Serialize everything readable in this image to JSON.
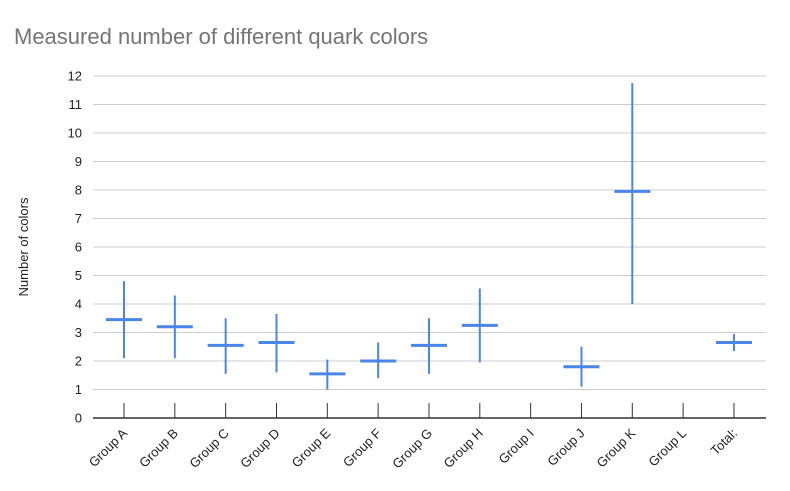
{
  "chart_data": {
    "type": "candlestick-error-bar",
    "title": "Measured number of different quark colors",
    "xlabel": "",
    "ylabel": "Number of colors",
    "ylim": [
      0,
      12
    ],
    "yticks": [
      0,
      1,
      2,
      3,
      4,
      5,
      6,
      7,
      8,
      9,
      10,
      11,
      12
    ],
    "grid": true,
    "legend": "none",
    "colors": {
      "series": "#4a86e8",
      "grid": "#cccccc",
      "axis": "#333333",
      "title": "#757575"
    },
    "categories": [
      "Group A",
      "Group B",
      "Group C",
      "Group D",
      "Group E",
      "Group F",
      "Group G",
      "Group H",
      "Group I",
      "Group J",
      "Group K",
      "Group L",
      "Total:"
    ],
    "series": [
      {
        "values": [
          3.45,
          3.2,
          2.55,
          2.65,
          1.55,
          2.0,
          2.55,
          3.25,
          null,
          1.8,
          7.95,
          null,
          2.65
        ],
        "low": [
          2.1,
          2.1,
          1.55,
          1.6,
          1.0,
          1.4,
          1.55,
          1.95,
          null,
          1.1,
          4.0,
          null,
          2.35
        ],
        "high": [
          4.8,
          4.3,
          3.5,
          3.65,
          2.05,
          2.65,
          3.5,
          4.55,
          null,
          2.5,
          11.75,
          null,
          2.95
        ]
      }
    ]
  }
}
